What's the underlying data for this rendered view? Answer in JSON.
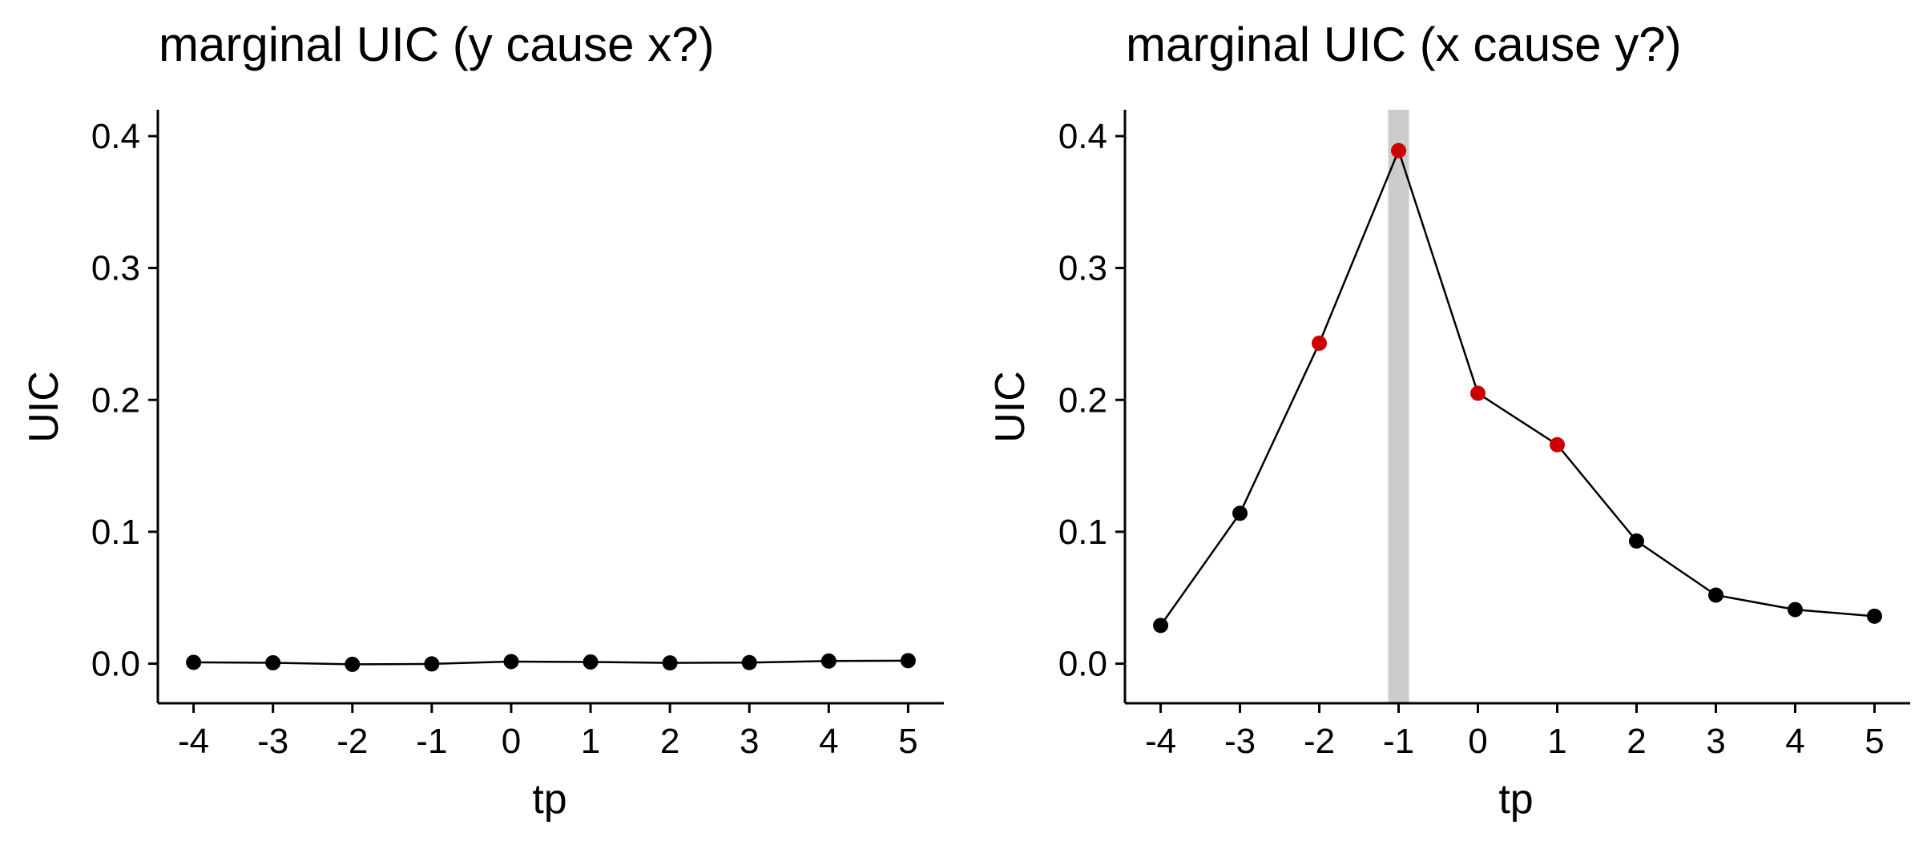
{
  "chart_data": [
    {
      "type": "line",
      "title": "marginal UIC (y cause x?)",
      "xlabel": "tp",
      "ylabel": "UIC",
      "x": [
        -4,
        -3,
        -2,
        -1,
        0,
        1,
        2,
        3,
        4,
        5
      ],
      "xticks": [
        "-4",
        "-3",
        "-2",
        "-1",
        "0",
        "1",
        "2",
        "3",
        "4",
        "5"
      ],
      "yticks": [
        "0.0",
        "0.1",
        "0.2",
        "0.3",
        "0.4"
      ],
      "ylim": [
        -0.03,
        0.42
      ],
      "xlim": [
        -4.45,
        5.45
      ],
      "series": [
        {
          "values": [
            0.001,
            0.0007,
            -0.0005,
            -0.0002,
            0.0016,
            0.0013,
            0.0006,
            0.0008,
            0.002,
            0.0023
          ],
          "highlight": [
            false,
            false,
            false,
            false,
            false,
            false,
            false,
            false,
            false,
            false
          ]
        }
      ],
      "highlight_band_x": null,
      "grid": false,
      "point_color": "#000000",
      "highlight_color": "#cc0000",
      "band_color": "#cccccc"
    },
    {
      "type": "line",
      "title": "marginal UIC (x cause y?)",
      "xlabel": "tp",
      "ylabel": "UIC",
      "x": [
        -4,
        -3,
        -2,
        -1,
        0,
        1,
        2,
        3,
        4,
        5
      ],
      "xticks": [
        "-4",
        "-3",
        "-2",
        "-1",
        "0",
        "1",
        "2",
        "3",
        "4",
        "5"
      ],
      "yticks": [
        "0.0",
        "0.1",
        "0.2",
        "0.3",
        "0.4"
      ],
      "ylim": [
        -0.03,
        0.42
      ],
      "xlim": [
        -4.45,
        5.45
      ],
      "series": [
        {
          "values": [
            0.029,
            0.114,
            0.243,
            0.389,
            0.205,
            0.166,
            0.093,
            0.052,
            0.041,
            0.036
          ],
          "highlight": [
            false,
            false,
            true,
            true,
            true,
            true,
            false,
            false,
            false,
            false
          ]
        }
      ],
      "highlight_band_x": -1,
      "grid": false,
      "point_color": "#000000",
      "highlight_color": "#cc0000",
      "band_color": "#cccccc"
    }
  ]
}
